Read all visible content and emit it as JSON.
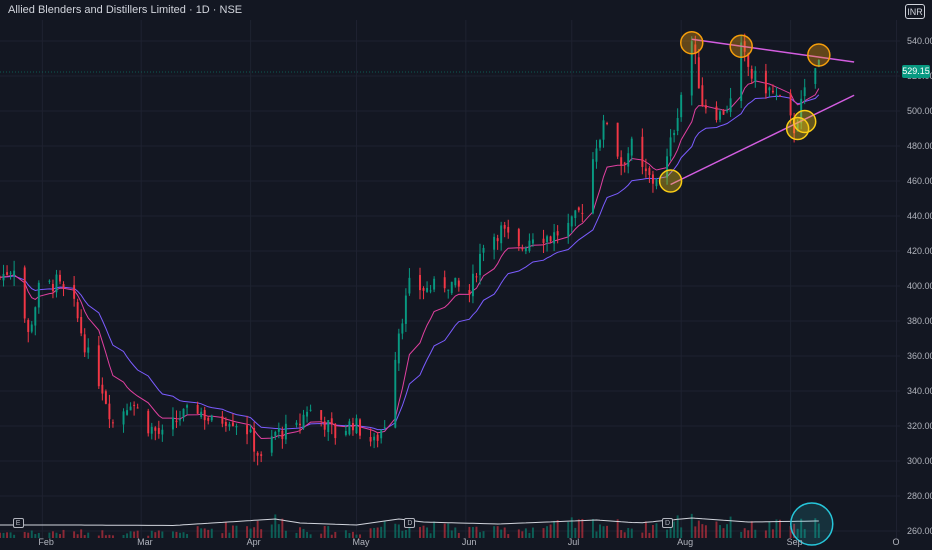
{
  "header": {
    "title": "Allied Blenders and Distillers Limited · 1D · NSE",
    "currency": "INR"
  },
  "last_price": {
    "label": "529.15",
    "value": 529.15,
    "color": "#089981"
  },
  "event_markers": [
    {
      "label": "E",
      "date": "2025-01-25"
    },
    {
      "label": "D",
      "date": "2025-05-16"
    },
    {
      "label": "D",
      "date": "2025-07-28"
    }
  ],
  "colors": {
    "up": "#089981",
    "down": "#f23645",
    "ema_fast": "#e040a0",
    "ema_slow": "#7b5cff",
    "trendline": "#d35de0",
    "resistance_circle": "#f59e0b",
    "support_circle": "#facc15",
    "volume_circle": "#26c6da",
    "grid": "#1e2230"
  },
  "chart_data": {
    "type": "candlestick",
    "title": "Allied Blenders and Distillers Limited · 1D · NSE",
    "x_ticks": [
      {
        "label": "Feb",
        "date": "2025-02-01"
      },
      {
        "label": "Mar",
        "date": "2025-03-01"
      },
      {
        "label": "Apr",
        "date": "2025-04-01"
      },
      {
        "label": "May",
        "date": "2025-05-01"
      },
      {
        "label": "Jun",
        "date": "2025-06-01"
      },
      {
        "label": "Jul",
        "date": "2025-07-01"
      },
      {
        "label": "Aug",
        "date": "2025-08-01"
      },
      {
        "label": "Sep",
        "date": "2025-09-01"
      },
      {
        "label": "O",
        "date": "2025-10-01"
      }
    ],
    "y_ticks": [
      260,
      280,
      300,
      320,
      340,
      360,
      380,
      400,
      420,
      440,
      460,
      480,
      500,
      520,
      540
    ],
    "ylim": [
      256,
      552
    ],
    "xlim": [
      "2025-01-20",
      "2025-10-02"
    ],
    "price_path": [
      [
        "2025-01-20",
        405
      ],
      [
        "2025-01-24",
        412
      ],
      [
        "2025-01-28",
        372
      ],
      [
        "2025-01-31",
        398
      ],
      [
        "2025-02-05",
        402
      ],
      [
        "2025-02-10",
        388
      ],
      [
        "2025-02-14",
        360
      ],
      [
        "2025-02-18",
        342
      ],
      [
        "2025-02-21",
        322
      ],
      [
        "2025-02-26",
        335
      ],
      [
        "2025-03-03",
        320
      ],
      [
        "2025-03-07",
        314
      ],
      [
        "2025-03-12",
        325
      ],
      [
        "2025-03-17",
        330
      ],
      [
        "2025-03-21",
        322
      ],
      [
        "2025-03-26",
        325
      ],
      [
        "2025-03-31",
        318
      ],
      [
        "2025-04-04",
        300
      ],
      [
        "2025-04-08",
        316
      ],
      [
        "2025-04-14",
        318
      ],
      [
        "2025-04-17",
        330
      ],
      [
        "2025-04-22",
        322
      ],
      [
        "2025-04-25",
        315
      ],
      [
        "2025-04-30",
        322
      ],
      [
        "2025-05-06",
        310
      ],
      [
        "2025-05-09",
        322
      ],
      [
        "2025-05-13",
        375
      ],
      [
        "2025-05-16",
        400
      ],
      [
        "2025-05-21",
        398
      ],
      [
        "2025-05-27",
        402
      ],
      [
        "2025-06-02",
        395
      ],
      [
        "2025-06-06",
        425
      ],
      [
        "2025-06-11",
        432
      ],
      [
        "2025-06-16",
        420
      ],
      [
        "2025-06-20",
        430
      ],
      [
        "2025-06-25",
        428
      ],
      [
        "2025-07-01",
        435
      ],
      [
        "2025-07-04",
        445
      ],
      [
        "2025-07-08",
        482
      ],
      [
        "2025-07-11",
        495
      ],
      [
        "2025-07-15",
        470
      ],
      [
        "2025-07-18",
        480
      ],
      [
        "2025-07-21",
        465
      ],
      [
        "2025-07-24",
        460
      ],
      [
        "2025-07-28",
        472
      ],
      [
        "2025-07-31",
        500
      ],
      [
        "2025-08-04",
        540
      ],
      [
        "2025-08-07",
        505
      ],
      [
        "2025-08-12",
        498
      ],
      [
        "2025-08-15",
        505
      ],
      [
        "2025-08-18",
        535
      ],
      [
        "2025-08-21",
        520
      ],
      [
        "2025-08-26",
        512
      ],
      [
        "2025-08-29",
        505
      ],
      [
        "2025-09-02",
        490
      ],
      [
        "2025-09-05",
        510
      ],
      [
        "2025-09-09",
        529.15
      ]
    ],
    "vol_profile": [
      [
        "2025-01-20",
        0.3
      ],
      [
        "2025-02-10",
        0.3
      ],
      [
        "2025-03-10",
        0.25
      ],
      [
        "2025-04-08",
        0.9
      ],
      [
        "2025-04-15",
        0.5
      ],
      [
        "2025-05-01",
        0.3
      ],
      [
        "2025-05-13",
        0.9
      ],
      [
        "2025-05-20",
        0.6
      ],
      [
        "2025-06-10",
        0.4
      ],
      [
        "2025-07-08",
        0.8
      ],
      [
        "2025-07-20",
        0.5
      ],
      [
        "2025-08-04",
        1.0
      ],
      [
        "2025-08-20",
        0.6
      ],
      [
        "2025-09-09",
        0.7
      ]
    ],
    "trendlines": [
      {
        "role": "resistance",
        "from": [
          "2025-08-04",
          541
        ],
        "to": [
          "2025-09-19",
          528
        ]
      },
      {
        "role": "support",
        "from": [
          "2025-07-29",
          458
        ],
        "to": [
          "2025-09-19",
          509
        ]
      }
    ],
    "highlight_circles": [
      {
        "role": "resistance-touch",
        "at": [
          "2025-08-04",
          539
        ]
      },
      {
        "role": "resistance-touch",
        "at": [
          "2025-08-18",
          537
        ]
      },
      {
        "role": "resistance-touch",
        "at": [
          "2025-09-09",
          532
        ]
      },
      {
        "role": "support-touch",
        "at": [
          "2025-07-29",
          460
        ]
      },
      {
        "role": "support-touch",
        "at": [
          "2025-09-03",
          490
        ]
      },
      {
        "role": "support-touch",
        "at": [
          "2025-09-05",
          494
        ]
      },
      {
        "role": "volume-spike",
        "at": [
          "2025-09-07",
          264
        ]
      }
    ]
  }
}
